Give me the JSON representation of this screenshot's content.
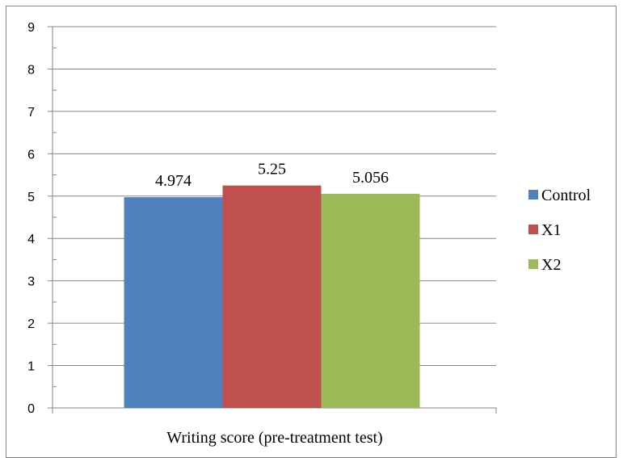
{
  "chart_data": {
    "type": "bar",
    "categories": [
      "Writing score (pre-treatment test)"
    ],
    "series": [
      {
        "name": "Control",
        "values": [
          4.974
        ],
        "color": "#4F81BD",
        "label": "4.974"
      },
      {
        "name": "X1",
        "values": [
          5.25
        ],
        "color": "#C0504D",
        "label": "5.25"
      },
      {
        "name": "X2",
        "values": [
          5.056
        ],
        "color": "#9BBB59",
        "label": "5.056"
      }
    ],
    "ylim": [
      0,
      9
    ],
    "yticks": [
      "0",
      "1",
      "2",
      "3",
      "4",
      "5",
      "6",
      "7",
      "8",
      "9"
    ],
    "grid": true,
    "legend": "right"
  }
}
